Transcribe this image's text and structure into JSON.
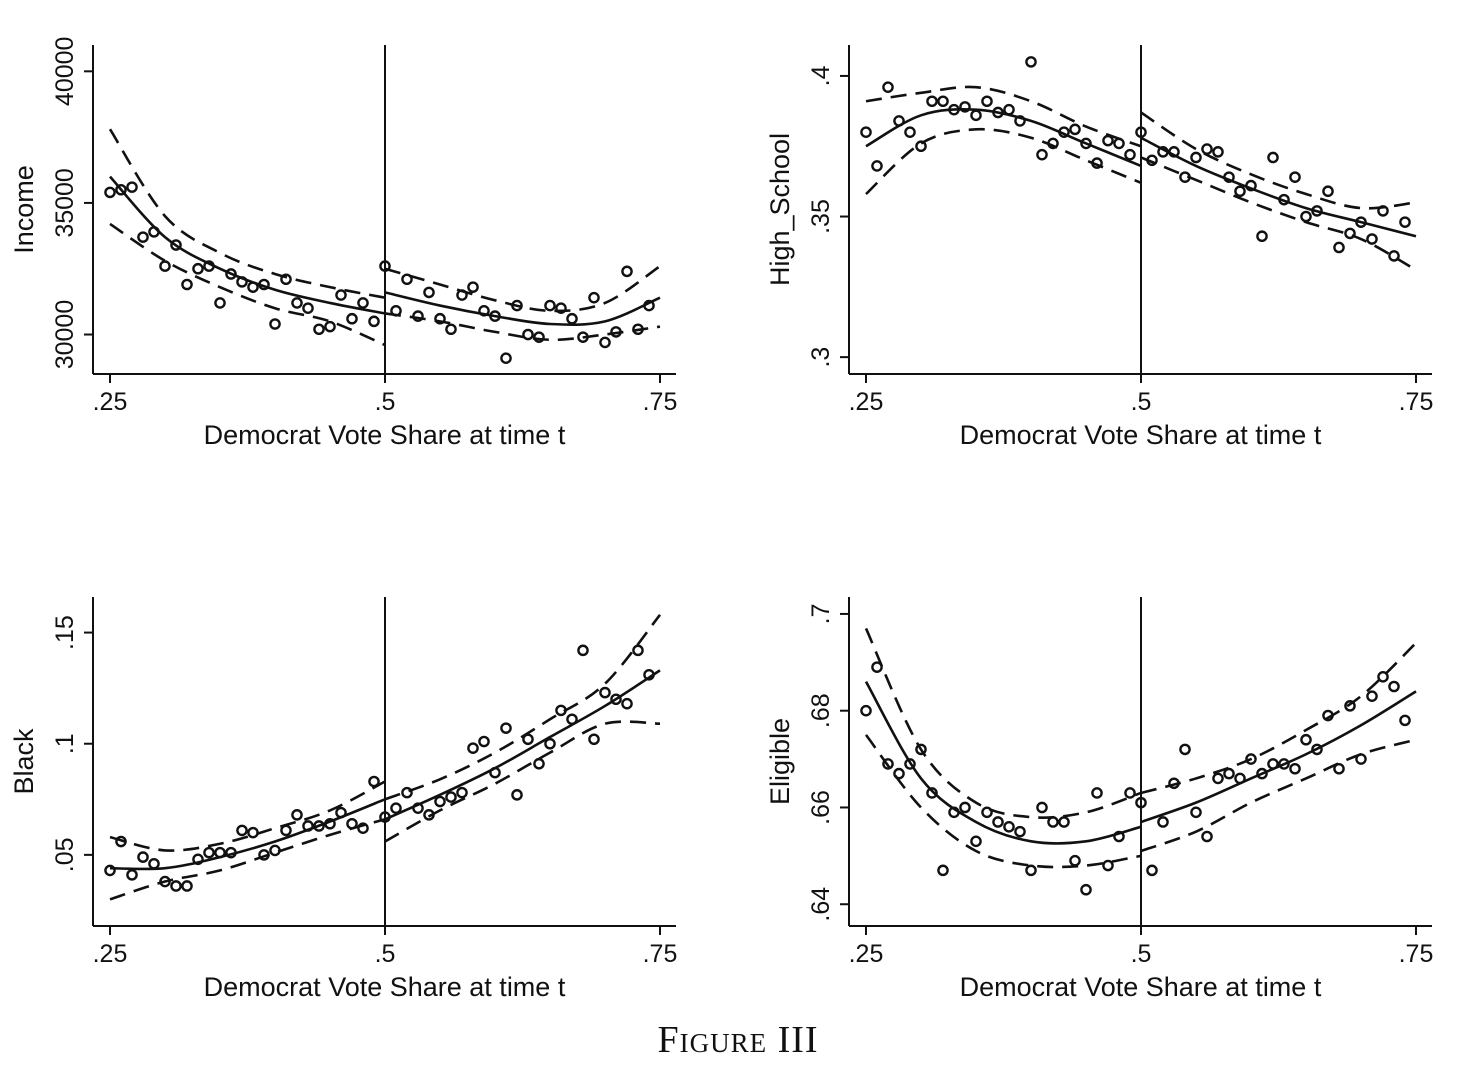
{
  "figure": {
    "caption": "Figure III"
  },
  "chart_data": [
    {
      "type": "scatter",
      "panel": "top-left",
      "xlabel": "Democrat Vote Share at time t",
      "ylabel": "Income",
      "xlim": [
        0.25,
        0.75
      ],
      "ylim": [
        28500,
        41000
      ],
      "xticks": [
        0.25,
        0.5,
        0.75
      ],
      "xtick_labels": [
        ".25",
        ".5",
        ".75"
      ],
      "yticks": [
        30000,
        35000,
        40000
      ],
      "ytick_labels": [
        "30000",
        "35000",
        "40000"
      ],
      "cutoff": 0.5,
      "points": [
        [
          0.25,
          35400
        ],
        [
          0.26,
          35500
        ],
        [
          0.27,
          35600
        ],
        [
          0.28,
          33700
        ],
        [
          0.29,
          33900
        ],
        [
          0.3,
          32600
        ],
        [
          0.31,
          33400
        ],
        [
          0.32,
          31900
        ],
        [
          0.33,
          32500
        ],
        [
          0.34,
          32600
        ],
        [
          0.35,
          31200
        ],
        [
          0.36,
          32300
        ],
        [
          0.37,
          32000
        ],
        [
          0.38,
          31800
        ],
        [
          0.39,
          31900
        ],
        [
          0.4,
          30400
        ],
        [
          0.41,
          32100
        ],
        [
          0.42,
          31200
        ],
        [
          0.43,
          31000
        ],
        [
          0.44,
          30200
        ],
        [
          0.45,
          30300
        ],
        [
          0.46,
          31500
        ],
        [
          0.47,
          30600
        ],
        [
          0.48,
          31200
        ],
        [
          0.49,
          30500
        ],
        [
          0.5,
          32600
        ],
        [
          0.51,
          30900
        ],
        [
          0.52,
          32100
        ],
        [
          0.53,
          30700
        ],
        [
          0.54,
          31600
        ],
        [
          0.55,
          30600
        ],
        [
          0.56,
          30200
        ],
        [
          0.57,
          31500
        ],
        [
          0.58,
          31800
        ],
        [
          0.59,
          30900
        ],
        [
          0.6,
          30700
        ],
        [
          0.61,
          29100
        ],
        [
          0.62,
          31100
        ],
        [
          0.63,
          30000
        ],
        [
          0.64,
          29900
        ],
        [
          0.65,
          31100
        ],
        [
          0.66,
          31000
        ],
        [
          0.67,
          30600
        ],
        [
          0.68,
          29900
        ],
        [
          0.69,
          31400
        ],
        [
          0.7,
          29700
        ],
        [
          0.71,
          30100
        ],
        [
          0.72,
          32400
        ],
        [
          0.73,
          30200
        ],
        [
          0.74,
          31100
        ]
      ],
      "fit_left": {
        "x": [
          0.25,
          0.3,
          0.35,
          0.4,
          0.45,
          0.5
        ],
        "y": [
          36000,
          33700,
          32500,
          31700,
          31200,
          30800
        ]
      },
      "ci_left_upper": {
        "x": [
          0.25,
          0.3,
          0.35,
          0.4,
          0.45,
          0.5
        ],
        "y": [
          37800,
          34500,
          33100,
          32300,
          31800,
          31400
        ]
      },
      "ci_left_lower": {
        "x": [
          0.25,
          0.3,
          0.35,
          0.4,
          0.45,
          0.5
        ],
        "y": [
          34200,
          32800,
          31800,
          31000,
          30500,
          29600
        ]
      },
      "fit_right": {
        "x": [
          0.5,
          0.55,
          0.6,
          0.65,
          0.7,
          0.75
        ],
        "y": [
          31600,
          31100,
          30700,
          30400,
          30500,
          31400
        ]
      },
      "ci_right_upper": {
        "x": [
          0.5,
          0.55,
          0.6,
          0.65,
          0.7,
          0.75
        ],
        "y": [
          32500,
          31900,
          31300,
          30900,
          31200,
          32600
        ]
      },
      "ci_right_lower": {
        "x": [
          0.5,
          0.55,
          0.6,
          0.65,
          0.7,
          0.75
        ],
        "y": [
          30800,
          30500,
          30100,
          29800,
          30000,
          30300
        ]
      }
    },
    {
      "type": "scatter",
      "panel": "top-right",
      "xlabel": "Democrat Vote Share at time t",
      "ylabel": "High_School",
      "xlim": [
        0.25,
        0.75
      ],
      "ylim": [
        0.294,
        0.411
      ],
      "xticks": [
        0.25,
        0.5,
        0.75
      ],
      "xtick_labels": [
        ".25",
        ".5",
        ".75"
      ],
      "yticks": [
        0.3,
        0.35,
        0.4
      ],
      "ytick_labels": [
        ".3",
        ".35",
        ".4"
      ],
      "cutoff": 0.5,
      "points": [
        [
          0.25,
          0.38
        ],
        [
          0.26,
          0.368
        ],
        [
          0.27,
          0.396
        ],
        [
          0.28,
          0.384
        ],
        [
          0.29,
          0.38
        ],
        [
          0.3,
          0.375
        ],
        [
          0.31,
          0.391
        ],
        [
          0.32,
          0.391
        ],
        [
          0.33,
          0.388
        ],
        [
          0.34,
          0.389
        ],
        [
          0.35,
          0.386
        ],
        [
          0.36,
          0.391
        ],
        [
          0.37,
          0.387
        ],
        [
          0.38,
          0.388
        ],
        [
          0.39,
          0.384
        ],
        [
          0.4,
          0.405
        ],
        [
          0.41,
          0.372
        ],
        [
          0.42,
          0.376
        ],
        [
          0.43,
          0.38
        ],
        [
          0.44,
          0.381
        ],
        [
          0.45,
          0.376
        ],
        [
          0.46,
          0.369
        ],
        [
          0.47,
          0.377
        ],
        [
          0.48,
          0.376
        ],
        [
          0.49,
          0.372
        ],
        [
          0.5,
          0.38
        ],
        [
          0.51,
          0.37
        ],
        [
          0.52,
          0.373
        ],
        [
          0.53,
          0.373
        ],
        [
          0.54,
          0.364
        ],
        [
          0.55,
          0.371
        ],
        [
          0.56,
          0.374
        ],
        [
          0.57,
          0.373
        ],
        [
          0.58,
          0.364
        ],
        [
          0.59,
          0.359
        ],
        [
          0.6,
          0.361
        ],
        [
          0.61,
          0.343
        ],
        [
          0.62,
          0.371
        ],
        [
          0.63,
          0.356
        ],
        [
          0.64,
          0.364
        ],
        [
          0.65,
          0.35
        ],
        [
          0.66,
          0.352
        ],
        [
          0.67,
          0.359
        ],
        [
          0.68,
          0.339
        ],
        [
          0.69,
          0.344
        ],
        [
          0.7,
          0.348
        ],
        [
          0.71,
          0.342
        ],
        [
          0.72,
          0.352
        ],
        [
          0.73,
          0.336
        ],
        [
          0.74,
          0.348
        ]
      ],
      "fit_left": {
        "x": [
          0.25,
          0.3,
          0.35,
          0.4,
          0.45,
          0.5
        ],
        "y": [
          0.375,
          0.386,
          0.388,
          0.384,
          0.376,
          0.368
        ]
      },
      "ci_left_upper": {
        "x": [
          0.25,
          0.3,
          0.35,
          0.4,
          0.45,
          0.5
        ],
        "y": [
          0.391,
          0.394,
          0.396,
          0.391,
          0.382,
          0.375
        ]
      },
      "ci_left_lower": {
        "x": [
          0.25,
          0.3,
          0.35,
          0.4,
          0.45,
          0.5
        ],
        "y": [
          0.358,
          0.376,
          0.381,
          0.378,
          0.37,
          0.362
        ]
      },
      "fit_right": {
        "x": [
          0.5,
          0.55,
          0.6,
          0.65,
          0.7,
          0.75
        ],
        "y": [
          0.378,
          0.368,
          0.36,
          0.353,
          0.348,
          0.343
        ]
      },
      "ci_right_upper": {
        "x": [
          0.5,
          0.55,
          0.6,
          0.65,
          0.7,
          0.75
        ],
        "y": [
          0.387,
          0.374,
          0.365,
          0.358,
          0.353,
          0.355
        ]
      },
      "ci_right_lower": {
        "x": [
          0.5,
          0.55,
          0.6,
          0.65,
          0.7,
          0.75
        ],
        "y": [
          0.371,
          0.363,
          0.355,
          0.348,
          0.342,
          0.331
        ]
      }
    },
    {
      "type": "scatter",
      "panel": "bottom-left",
      "xlabel": "Democrat Vote Share at time t",
      "ylabel": "Black",
      "xlim": [
        0.25,
        0.75
      ],
      "ylim": [
        0.018,
        0.166
      ],
      "xticks": [
        0.25,
        0.5,
        0.75
      ],
      "xtick_labels": [
        ".25",
        ".5",
        ".75"
      ],
      "yticks": [
        0.05,
        0.1,
        0.15
      ],
      "ytick_labels": [
        ".05",
        ".1",
        ".15"
      ],
      "cutoff": 0.5,
      "points": [
        [
          0.25,
          0.043
        ],
        [
          0.26,
          0.056
        ],
        [
          0.27,
          0.041
        ],
        [
          0.28,
          0.049
        ],
        [
          0.29,
          0.046
        ],
        [
          0.3,
          0.038
        ],
        [
          0.31,
          0.036
        ],
        [
          0.32,
          0.036
        ],
        [
          0.33,
          0.048
        ],
        [
          0.34,
          0.051
        ],
        [
          0.35,
          0.051
        ],
        [
          0.36,
          0.051
        ],
        [
          0.37,
          0.061
        ],
        [
          0.38,
          0.06
        ],
        [
          0.39,
          0.05
        ],
        [
          0.4,
          0.052
        ],
        [
          0.41,
          0.061
        ],
        [
          0.42,
          0.068
        ],
        [
          0.43,
          0.063
        ],
        [
          0.44,
          0.063
        ],
        [
          0.45,
          0.064
        ],
        [
          0.46,
          0.069
        ],
        [
          0.47,
          0.064
        ],
        [
          0.48,
          0.062
        ],
        [
          0.49,
          0.083
        ],
        [
          0.5,
          0.067
        ],
        [
          0.51,
          0.071
        ],
        [
          0.52,
          0.078
        ],
        [
          0.53,
          0.071
        ],
        [
          0.54,
          0.068
        ],
        [
          0.55,
          0.074
        ],
        [
          0.56,
          0.076
        ],
        [
          0.57,
          0.078
        ],
        [
          0.58,
          0.098
        ],
        [
          0.59,
          0.101
        ],
        [
          0.6,
          0.087
        ],
        [
          0.61,
          0.107
        ],
        [
          0.62,
          0.077
        ],
        [
          0.63,
          0.102
        ],
        [
          0.64,
          0.091
        ],
        [
          0.65,
          0.1
        ],
        [
          0.66,
          0.115
        ],
        [
          0.67,
          0.111
        ],
        [
          0.68,
          0.142
        ],
        [
          0.69,
          0.102
        ],
        [
          0.7,
          0.123
        ],
        [
          0.71,
          0.12
        ],
        [
          0.72,
          0.118
        ],
        [
          0.73,
          0.142
        ],
        [
          0.74,
          0.131
        ]
      ],
      "fit_left": {
        "x": [
          0.25,
          0.3,
          0.35,
          0.4,
          0.45,
          0.5
        ],
        "y": [
          0.044,
          0.044,
          0.049,
          0.056,
          0.065,
          0.075
        ]
      },
      "ci_left_upper": {
        "x": [
          0.25,
          0.3,
          0.35,
          0.4,
          0.45,
          0.5
        ],
        "y": [
          0.058,
          0.052,
          0.055,
          0.062,
          0.07,
          0.083
        ]
      },
      "ci_left_lower": {
        "x": [
          0.25,
          0.3,
          0.35,
          0.4,
          0.45,
          0.5
        ],
        "y": [
          0.03,
          0.038,
          0.043,
          0.051,
          0.059,
          0.066
        ]
      },
      "fit_right": {
        "x": [
          0.5,
          0.55,
          0.6,
          0.65,
          0.7,
          0.75
        ],
        "y": [
          0.066,
          0.077,
          0.089,
          0.103,
          0.117,
          0.133
        ]
      },
      "ci_right_upper": {
        "x": [
          0.5,
          0.55,
          0.6,
          0.65,
          0.7,
          0.75
        ],
        "y": [
          0.075,
          0.084,
          0.096,
          0.111,
          0.127,
          0.158
        ]
      },
      "ci_right_lower": {
        "x": [
          0.5,
          0.55,
          0.6,
          0.65,
          0.7,
          0.75
        ],
        "y": [
          0.056,
          0.07,
          0.082,
          0.096,
          0.109,
          0.109
        ]
      }
    },
    {
      "type": "scatter",
      "panel": "bottom-right",
      "xlabel": "Democrat Vote Share at time t",
      "ylabel": "Eligible",
      "xlim": [
        0.25,
        0.75
      ],
      "ylim": [
        0.6355,
        0.7035
      ],
      "xticks": [
        0.25,
        0.5,
        0.75
      ],
      "xtick_labels": [
        ".25",
        ".5",
        ".75"
      ],
      "yticks": [
        0.64,
        0.66,
        0.68,
        0.7
      ],
      "ytick_labels": [
        ".64",
        ".66",
        ".68",
        ".7"
      ],
      "cutoff": 0.5,
      "points": [
        [
          0.25,
          0.68
        ],
        [
          0.26,
          0.689
        ],
        [
          0.27,
          0.669
        ],
        [
          0.28,
          0.667
        ],
        [
          0.29,
          0.669
        ],
        [
          0.3,
          0.672
        ],
        [
          0.31,
          0.663
        ],
        [
          0.32,
          0.647
        ],
        [
          0.33,
          0.659
        ],
        [
          0.34,
          0.66
        ],
        [
          0.35,
          0.653
        ],
        [
          0.36,
          0.659
        ],
        [
          0.37,
          0.657
        ],
        [
          0.38,
          0.656
        ],
        [
          0.39,
          0.655
        ],
        [
          0.4,
          0.647
        ],
        [
          0.41,
          0.66
        ],
        [
          0.42,
          0.657
        ],
        [
          0.43,
          0.657
        ],
        [
          0.44,
          0.649
        ],
        [
          0.45,
          0.643
        ],
        [
          0.46,
          0.663
        ],
        [
          0.47,
          0.648
        ],
        [
          0.48,
          0.654
        ],
        [
          0.49,
          0.663
        ],
        [
          0.5,
          0.661
        ],
        [
          0.51,
          0.647
        ],
        [
          0.52,
          0.657
        ],
        [
          0.53,
          0.665
        ],
        [
          0.54,
          0.672
        ],
        [
          0.55,
          0.659
        ],
        [
          0.56,
          0.654
        ],
        [
          0.57,
          0.666
        ],
        [
          0.58,
          0.667
        ],
        [
          0.59,
          0.666
        ],
        [
          0.6,
          0.67
        ],
        [
          0.61,
          0.667
        ],
        [
          0.62,
          0.669
        ],
        [
          0.63,
          0.669
        ],
        [
          0.64,
          0.668
        ],
        [
          0.65,
          0.674
        ],
        [
          0.66,
          0.672
        ],
        [
          0.67,
          0.679
        ],
        [
          0.68,
          0.668
        ],
        [
          0.69,
          0.681
        ],
        [
          0.7,
          0.67
        ],
        [
          0.71,
          0.683
        ],
        [
          0.72,
          0.687
        ],
        [
          0.73,
          0.685
        ],
        [
          0.74,
          0.678
        ]
      ],
      "fit_left": {
        "x": [
          0.25,
          0.3,
          0.35,
          0.4,
          0.45,
          0.5
        ],
        "y": [
          0.686,
          0.666,
          0.657,
          0.653,
          0.653,
          0.656
        ]
      },
      "ci_left_upper": {
        "x": [
          0.25,
          0.3,
          0.35,
          0.4,
          0.45,
          0.5
        ],
        "y": [
          0.697,
          0.672,
          0.661,
          0.658,
          0.659,
          0.663
        ]
      },
      "ci_left_lower": {
        "x": [
          0.25,
          0.3,
          0.35,
          0.4,
          0.45,
          0.5
        ],
        "y": [
          0.675,
          0.66,
          0.651,
          0.648,
          0.648,
          0.65
        ]
      },
      "fit_right": {
        "x": [
          0.5,
          0.55,
          0.6,
          0.65,
          0.7,
          0.75
        ],
        "y": [
          0.657,
          0.661,
          0.666,
          0.671,
          0.677,
          0.684
        ]
      },
      "ci_right_upper": {
        "x": [
          0.5,
          0.55,
          0.6,
          0.65,
          0.7,
          0.75
        ],
        "y": [
          0.663,
          0.666,
          0.67,
          0.676,
          0.683,
          0.694
        ]
      },
      "ci_right_lower": {
        "x": [
          0.5,
          0.55,
          0.6,
          0.65,
          0.7,
          0.75
        ],
        "y": [
          0.651,
          0.655,
          0.661,
          0.666,
          0.671,
          0.674
        ]
      }
    }
  ]
}
